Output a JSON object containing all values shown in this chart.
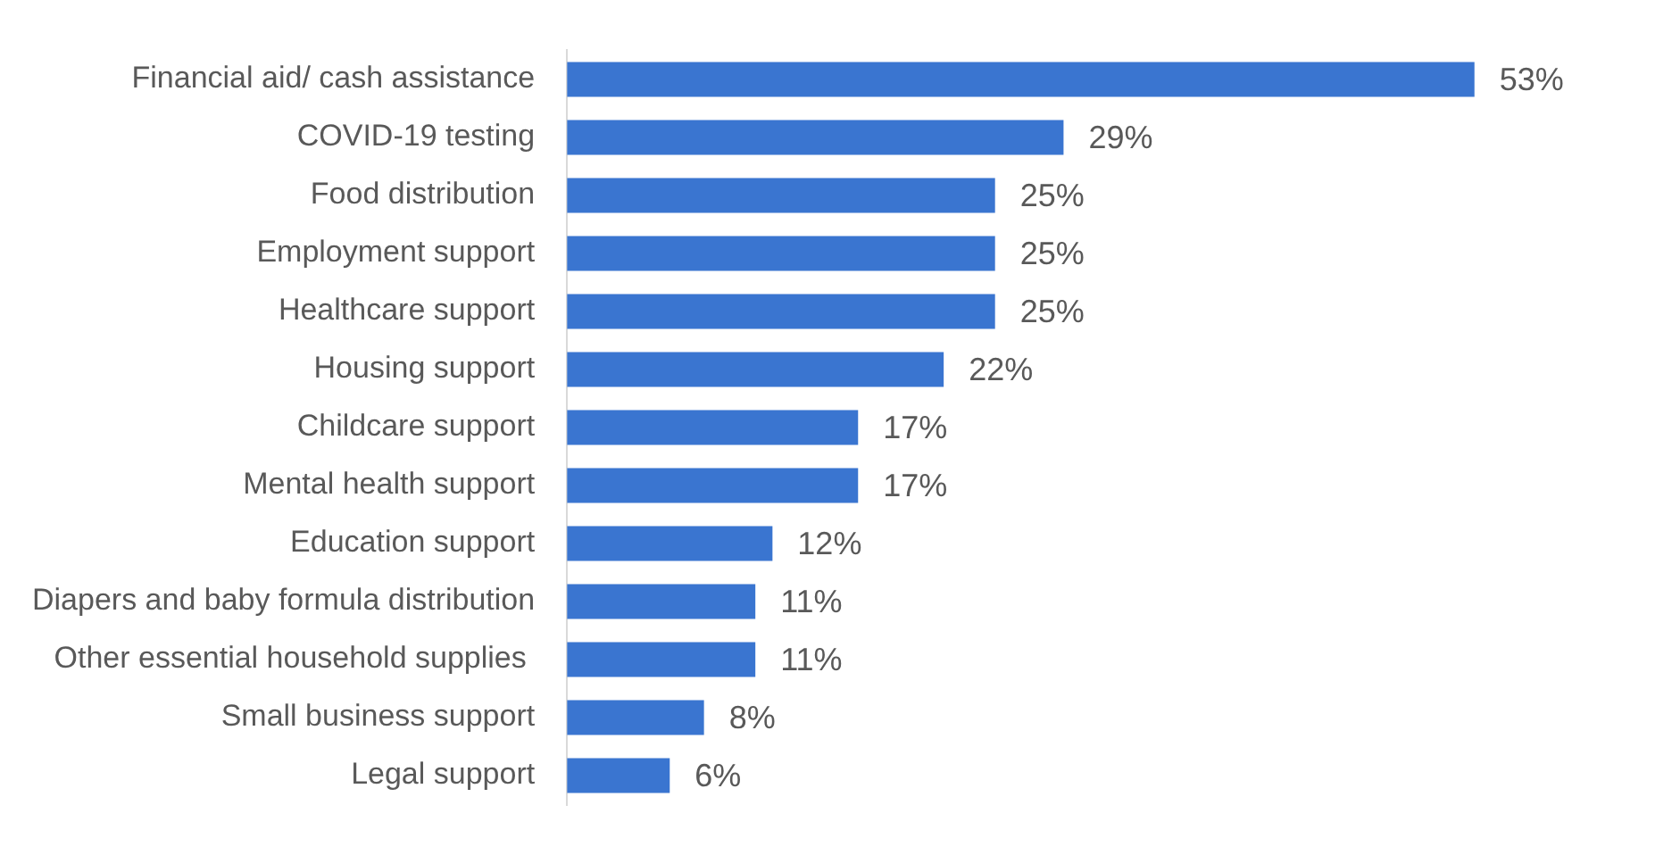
{
  "chart_data": {
    "type": "bar",
    "orientation": "horizontal",
    "categories": [
      "Financial aid/ cash assistance",
      "COVID-19 testing",
      "Food distribution",
      "Employment support",
      "Healthcare support",
      "Housing support",
      "Childcare support",
      "Mental health support",
      "Education support",
      "Diapers and baby formula distribution",
      "Other essential household supplies ",
      "Small business support",
      "Legal support"
    ],
    "values": [
      53,
      29,
      25,
      25,
      25,
      22,
      17,
      17,
      12,
      11,
      11,
      8,
      6
    ],
    "value_labels": [
      "53%",
      "29%",
      "25%",
      "25%",
      "25%",
      "22%",
      "17%",
      "17%",
      "12%",
      "11%",
      "11%",
      "8%",
      "6%"
    ],
    "color": "#3a75d0",
    "legend": false
  }
}
